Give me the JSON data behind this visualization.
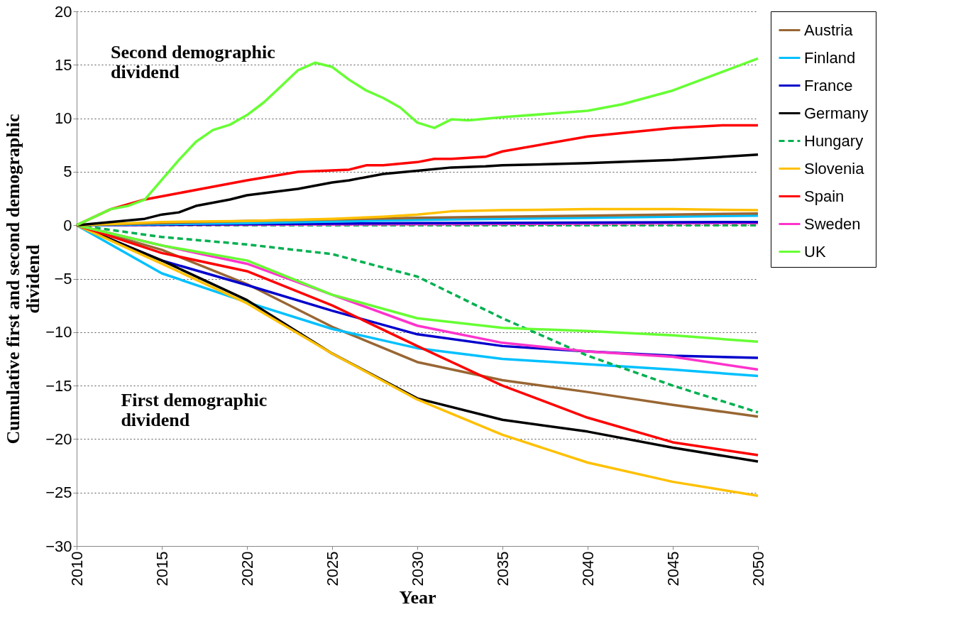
{
  "chart_data": {
    "type": "line",
    "xlabel": "Year",
    "ylabel": "Cumulative first and second demographic dividend",
    "xlim": [
      2010,
      2050
    ],
    "xticks": [
      2010,
      2015,
      2020,
      2025,
      2030,
      2035,
      2040,
      2045,
      2050
    ],
    "ylim": [
      -30,
      20
    ],
    "yticks": [
      -30,
      -25,
      -20,
      -15,
      -10,
      -5,
      0,
      5,
      10,
      15,
      20
    ],
    "grid": "y",
    "legend": "right",
    "marker": "none",
    "line_style": "solid",
    "annotations": [
      "Second demographic\ndividend",
      "First demographic\ndividend"
    ],
    "series": [
      {
        "name": "Austria",
        "color": "#996633",
        "x": [
          2010,
          2015,
          2020,
          2025,
          2030,
          2035,
          2040,
          2045,
          2050
        ],
        "values": [
          0,
          -2.3,
          -5.5,
          -9.5,
          -12.8,
          -14.5,
          -15.6,
          -16.8,
          -17.9
        ]
      },
      {
        "name": "Finland",
        "color": "#00c0ff",
        "x": [
          2010,
          2015,
          2020,
          2025,
          2030,
          2035,
          2040,
          2045,
          2050
        ],
        "values": [
          0,
          -4.5,
          -7.2,
          -9.7,
          -11.5,
          -12.5,
          -13.0,
          -13.5,
          -14.1
        ]
      },
      {
        "name": "France",
        "color": "#0000cc",
        "x": [
          2010,
          2015,
          2020,
          2025,
          2030,
          2035,
          2040,
          2045,
          2050
        ],
        "values": [
          0,
          -3.3,
          -5.6,
          -8.0,
          -10.2,
          -11.3,
          -11.8,
          -12.2,
          -12.4
        ]
      },
      {
        "name": "Germany",
        "color": "#000000",
        "x": [
          2010,
          2015,
          2020,
          2025,
          2030,
          2035,
          2040,
          2045,
          2050
        ],
        "values": [
          0,
          -3.3,
          -7.0,
          -12.0,
          -16.2,
          -18.2,
          -19.3,
          -20.8,
          -22.1
        ]
      },
      {
        "name": "Hungary",
        "color": "#00b050",
        "line_style": "dashed",
        "x": [
          2010,
          2015,
          2020,
          2025,
          2030,
          2035,
          2040,
          2045,
          2050
        ],
        "values": [
          0,
          -1.1,
          -1.8,
          -2.7,
          -4.8,
          -8.7,
          -12.2,
          -15.0,
          -17.5
        ]
      },
      {
        "name": "Slovenia",
        "color": "#ffc000",
        "x": [
          2010,
          2015,
          2020,
          2025,
          2030,
          2035,
          2040,
          2045,
          2050
        ],
        "values": [
          0,
          -3.6,
          -7.3,
          -12.0,
          -16.3,
          -19.6,
          -22.2,
          -24.0,
          -25.3
        ]
      },
      {
        "name": "Spain",
        "color": "#ff0000",
        "x": [
          2010,
          2015,
          2020,
          2025,
          2030,
          2035,
          2040,
          2045,
          2050
        ],
        "values": [
          0,
          -2.6,
          -4.3,
          -7.5,
          -11.3,
          -15.0,
          -18.0,
          -20.3,
          -21.5
        ]
      },
      {
        "name": "Sweden",
        "color": "#ff33cc",
        "x": [
          2010,
          2015,
          2020,
          2025,
          2030,
          2035,
          2040,
          2045,
          2050
        ],
        "values": [
          0,
          -1.9,
          -3.6,
          -6.5,
          -9.4,
          -11.0,
          -11.8,
          -12.3,
          -13.5
        ]
      },
      {
        "name": "UK",
        "color": "#66ff33",
        "x": [
          2010,
          2015,
          2020,
          2025,
          2030,
          2035,
          2040,
          2045,
          2050
        ],
        "values": [
          0,
          -1.9,
          -3.3,
          -6.5,
          -8.7,
          -9.6,
          -9.9,
          -10.3,
          -10.9
        ]
      },
      {
        "color": "#00b050",
        "line_style": "dashed",
        "x": [
          2010,
          2030,
          2050
        ],
        "values": [
          0,
          0,
          0
        ]
      },
      {
        "color": "#ff33cc",
        "x": [
          2010,
          2030,
          2050
        ],
        "values": [
          0,
          0.1,
          0.2
        ]
      },
      {
        "color": "#0000cc",
        "x": [
          2010,
          2030,
          2050
        ],
        "values": [
          0,
          0.2,
          0.3
        ]
      },
      {
        "color": "#00c0ff",
        "x": [
          2010,
          2020,
          2030,
          2040,
          2050
        ],
        "values": [
          0,
          0.2,
          0.5,
          0.7,
          0.9
        ]
      },
      {
        "color": "#996633",
        "x": [
          2010,
          2020,
          2030,
          2040,
          2050
        ],
        "values": [
          0,
          0.4,
          0.7,
          0.9,
          1.1
        ]
      },
      {
        "color": "#ffc000",
        "x": [
          2010,
          2015,
          2020,
          2025,
          2028,
          2030,
          2032,
          2035,
          2040,
          2045,
          2050
        ],
        "values": [
          0,
          0.3,
          0.4,
          0.6,
          0.8,
          1.0,
          1.3,
          1.4,
          1.5,
          1.5,
          1.4
        ]
      },
      {
        "color": "#000000",
        "x": [
          2010,
          2014,
          2015,
          2016,
          2017,
          2019,
          2020,
          2021,
          2023,
          2025,
          2026,
          2028,
          2030,
          2032,
          2034,
          2035,
          2040,
          2045,
          2050
        ],
        "values": [
          0,
          0.6,
          1.0,
          1.2,
          1.8,
          2.4,
          2.8,
          3.0,
          3.4,
          4.0,
          4.2,
          4.8,
          5.1,
          5.4,
          5.5,
          5.6,
          5.8,
          6.1,
          6.6
        ]
      },
      {
        "color": "#ff0000",
        "x": [
          2010,
          2012,
          2014,
          2016,
          2018,
          2020,
          2023,
          2026,
          2027,
          2028,
          2030,
          2031,
          2032,
          2034,
          2035,
          2040,
          2045,
          2048,
          2050
        ],
        "values": [
          0,
          1.5,
          2.4,
          3.0,
          3.6,
          4.2,
          5.0,
          5.2,
          5.6,
          5.6,
          5.9,
          6.2,
          6.2,
          6.4,
          6.9,
          8.3,
          9.1,
          9.35,
          9.35
        ]
      },
      {
        "color": "#66ff33",
        "x": [
          2010,
          2012,
          2013,
          2014,
          2016,
          2017,
          2018,
          2019,
          2020,
          2021,
          2022,
          2023,
          2024,
          2025,
          2026,
          2027,
          2028,
          2029,
          2030,
          2031,
          2032,
          2033,
          2035,
          2040,
          2042,
          2045,
          2048,
          2050
        ],
        "values": [
          0,
          1.5,
          1.8,
          2.4,
          6.1,
          7.8,
          8.9,
          9.4,
          10.3,
          11.5,
          13.0,
          14.5,
          15.2,
          14.8,
          13.6,
          12.6,
          11.9,
          11.0,
          9.6,
          9.1,
          9.9,
          9.8,
          10.1,
          10.7,
          11.3,
          12.6,
          14.4,
          15.6
        ]
      }
    ]
  }
}
